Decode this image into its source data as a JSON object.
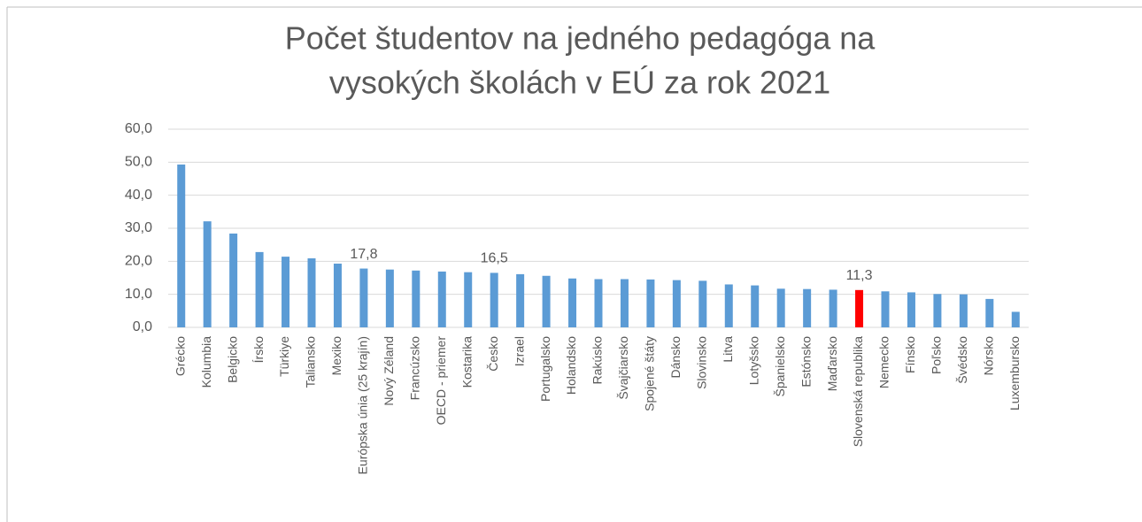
{
  "chart_data": {
    "type": "bar",
    "title": [
      "Počet študentov na jedného pedagóga na",
      "vysokých školách v EÚ za rok 2021"
    ],
    "categories": [
      "Grécko",
      "Kolumbia",
      "Belgicko",
      "Írsko",
      "Türkiye",
      "Taliansko",
      "Mexiko",
      "Európska únia (25 krajín)",
      "Nový Zéland",
      "Francúzsko",
      "OECD - priemer",
      "Kostarika",
      "Česko",
      "Izrael",
      "Portugalsko",
      "Holandsko",
      "Rakúsko",
      "Švajčiarsko",
      "Spojené štáty",
      "Dánsko",
      "Slovinsko",
      "Litva",
      "Lotyšsko",
      "Španielsko",
      "Estónsko",
      "Maďarsko",
      "Slovenská republika",
      "Nemecko",
      "Fínsko",
      "Poľsko",
      "Švédsko",
      "Nórsko",
      "Luxembursko"
    ],
    "values": [
      49.3,
      32.1,
      28.4,
      22.8,
      21.4,
      20.9,
      19.3,
      17.8,
      17.5,
      17.2,
      16.9,
      16.7,
      16.5,
      16.1,
      15.6,
      14.8,
      14.6,
      14.6,
      14.5,
      14.3,
      14.1,
      13.0,
      12.7,
      11.7,
      11.6,
      11.4,
      11.3,
      10.9,
      10.6,
      10.1,
      10.0,
      8.6,
      4.7
    ],
    "value_labels": [
      null,
      null,
      null,
      null,
      null,
      null,
      null,
      "17,8",
      null,
      null,
      null,
      null,
      "16,5",
      null,
      null,
      null,
      null,
      null,
      null,
      null,
      null,
      null,
      null,
      null,
      null,
      null,
      "11,3",
      null,
      null,
      null,
      null,
      null,
      null
    ],
    "colors": [
      "#5b9bd5",
      "#5b9bd5",
      "#5b9bd5",
      "#5b9bd5",
      "#5b9bd5",
      "#5b9bd5",
      "#5b9bd5",
      "#5b9bd5",
      "#5b9bd5",
      "#5b9bd5",
      "#5b9bd5",
      "#5b9bd5",
      "#5b9bd5",
      "#5b9bd5",
      "#5b9bd5",
      "#5b9bd5",
      "#5b9bd5",
      "#5b9bd5",
      "#5b9bd5",
      "#5b9bd5",
      "#5b9bd5",
      "#5b9bd5",
      "#5b9bd5",
      "#5b9bd5",
      "#5b9bd5",
      "#5b9bd5",
      "#ff0000",
      "#5b9bd5",
      "#5b9bd5",
      "#5b9bd5",
      "#5b9bd5",
      "#5b9bd5",
      "#5b9bd5"
    ],
    "ylim": [
      0,
      60
    ],
    "yticks": [
      {
        "value": 0,
        "label": "0,0"
      },
      {
        "value": 10,
        "label": "10,0"
      },
      {
        "value": 20,
        "label": "20,0"
      },
      {
        "value": 30,
        "label": "30,0"
      },
      {
        "value": 40,
        "label": "40,0"
      },
      {
        "value": 50,
        "label": "50,0"
      },
      {
        "value": 60,
        "label": "60,0"
      }
    ],
    "grid": true
  }
}
